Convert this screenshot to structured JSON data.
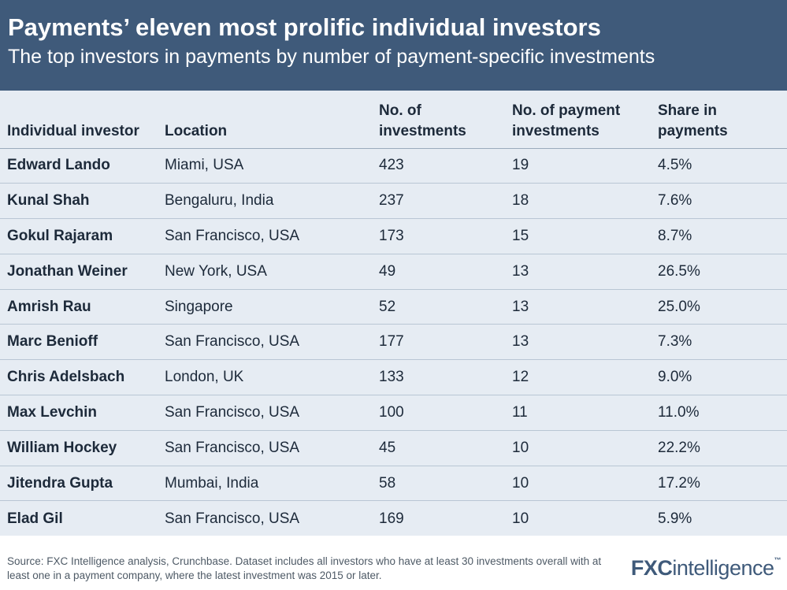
{
  "chart_data": {
    "type": "table",
    "title": "Payments’ eleven most prolific individual investors",
    "subtitle": "The top investors in payments by number of payment-specific investments",
    "columns": [
      "Individual investor",
      "Location",
      "No. of investments",
      "No. of payment investments",
      "Share in payments"
    ],
    "rows": [
      [
        "Edward Lando",
        "Miami, USA",
        "423",
        "19",
        "4.5%"
      ],
      [
        "Kunal Shah",
        "Bengaluru, India",
        "237",
        "18",
        "7.6%"
      ],
      [
        "Gokul Rajaram",
        "San Francisco, USA",
        "173",
        "15",
        "8.7%"
      ],
      [
        "Jonathan Weiner",
        "New York, USA",
        "49",
        "13",
        "26.5%"
      ],
      [
        "Amrish Rau",
        "Singapore",
        "52",
        "13",
        "25.0%"
      ],
      [
        "Marc Benioff",
        "San Francisco, USA",
        "177",
        "13",
        "7.3%"
      ],
      [
        "Chris Adelsbach",
        "London, UK",
        "133",
        "12",
        "9.0%"
      ],
      [
        "Max Levchin",
        "San Francisco, USA",
        "100",
        "11",
        "11.0%"
      ],
      [
        "William Hockey",
        "San Francisco, USA",
        "45",
        "10",
        "22.2%"
      ],
      [
        "Jitendra Gupta",
        "Mumbai, India",
        "58",
        "10",
        "17.2%"
      ],
      [
        "Elad Gil",
        "San Francisco, USA",
        "169",
        "10",
        "5.9%"
      ]
    ]
  },
  "footer": {
    "source": "Source: FXC Intelligence analysis, Crunchbase. Dataset includes all investors who have at least 30 investments overall with at least one in a payment company, where the latest investment was 2015 or later.",
    "logo_bold": "FXC",
    "logo_rest": "intelligence",
    "logo_mark": "™"
  },
  "colors": {
    "header_bg": "#3f5a7a",
    "table_bg": "#e6ecf3",
    "text": "#1d2a3a"
  }
}
